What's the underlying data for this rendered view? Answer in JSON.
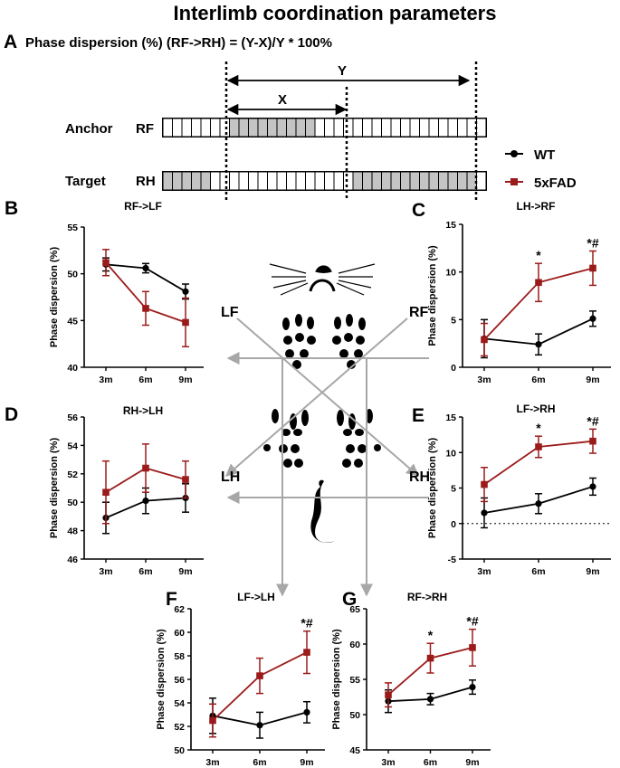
{
  "title": "Interlimb coordination parameters",
  "panel_a": {
    "letter": "A",
    "formula": "Phase dispersion (%) (RF->RH) = (Y-X)/Y * 100%",
    "x_label": "X",
    "y_label": "Y",
    "anchor_label": "Anchor",
    "anchor_limb": "RF",
    "target_label": "Target",
    "target_limb": "RH"
  },
  "legend": [
    {
      "name": "WT",
      "color": "#000000",
      "marker": "circle"
    },
    {
      "name": "5xFAD",
      "color": "#9b1b1b",
      "marker": "square"
    }
  ],
  "limb_labels": {
    "lf": "LF",
    "rf": "RF",
    "lh": "LH",
    "rh": "RH"
  },
  "chart_data": [
    {
      "letter": "B",
      "title": "RF->LF",
      "type": "line",
      "categories": [
        "3m",
        "6m",
        "9m"
      ],
      "ylabel": "Phase dispersion (%)",
      "ylim": [
        40,
        55
      ],
      "yticks": [
        40,
        45,
        50,
        55
      ],
      "zero_line": false,
      "series": [
        {
          "name": "WT",
          "values": [
            51.0,
            50.6,
            48.1
          ],
          "err": [
            0.7,
            0.5,
            0.8
          ]
        },
        {
          "name": "5xFAD",
          "values": [
            51.2,
            46.3,
            44.8
          ],
          "err": [
            1.4,
            1.8,
            2.6
          ]
        }
      ],
      "annotations": [
        "",
        "",
        ""
      ]
    },
    {
      "letter": "C",
      "title": "LH->RF",
      "type": "line",
      "categories": [
        "3m",
        "6m",
        "9m"
      ],
      "ylabel": "Phase dispersion (%)",
      "ylim": [
        0,
        15
      ],
      "yticks": [
        0,
        5,
        10,
        15
      ],
      "zero_line": false,
      "series": [
        {
          "name": "WT",
          "values": [
            3.0,
            2.4,
            5.1
          ],
          "err": [
            2.0,
            1.1,
            0.8
          ]
        },
        {
          "name": "5xFAD",
          "values": [
            2.9,
            8.9,
            10.4
          ],
          "err": [
            1.7,
            2.0,
            1.8
          ]
        }
      ],
      "annotations": [
        "",
        "*",
        "*#"
      ]
    },
    {
      "letter": "D",
      "title": "RH->LH",
      "type": "line",
      "categories": [
        "3m",
        "6m",
        "9m"
      ],
      "ylabel": "Phase dispersion (%)",
      "ylim": [
        46,
        56
      ],
      "yticks": [
        46,
        48,
        50,
        52,
        54,
        56
      ],
      "zero_line": false,
      "series": [
        {
          "name": "WT",
          "values": [
            48.9,
            50.1,
            50.3
          ],
          "err": [
            1.1,
            0.9,
            1.0
          ]
        },
        {
          "name": "5xFAD",
          "values": [
            50.7,
            52.4,
            51.6
          ],
          "err": [
            2.2,
            1.7,
            1.3
          ]
        }
      ],
      "annotations": [
        "",
        "",
        ""
      ]
    },
    {
      "letter": "E",
      "title": "LF->RH",
      "type": "line",
      "categories": [
        "3m",
        "6m",
        "9m"
      ],
      "ylabel": "Phase dispersion (%)",
      "ylim": [
        -5,
        15
      ],
      "yticks": [
        -5,
        0,
        5,
        10,
        15
      ],
      "zero_line": true,
      "series": [
        {
          "name": "WT",
          "values": [
            1.5,
            2.8,
            5.2
          ],
          "err": [
            2.1,
            1.4,
            1.2
          ]
        },
        {
          "name": "5xFAD",
          "values": [
            5.5,
            10.8,
            11.6
          ],
          "err": [
            2.4,
            1.5,
            1.7
          ]
        }
      ],
      "annotations": [
        "",
        "*",
        "*#"
      ]
    },
    {
      "letter": "F",
      "title": "LF->LH",
      "type": "line",
      "categories": [
        "3m",
        "6m",
        "9m"
      ],
      "ylabel": "Phase dispersion (%)",
      "ylim": [
        50,
        62
      ],
      "yticks": [
        50,
        52,
        54,
        56,
        58,
        60,
        62
      ],
      "zero_line": false,
      "series": [
        {
          "name": "WT",
          "values": [
            52.9,
            52.1,
            53.2
          ],
          "err": [
            1.5,
            1.1,
            0.9
          ]
        },
        {
          "name": "5xFAD",
          "values": [
            52.5,
            56.3,
            58.3
          ],
          "err": [
            1.4,
            1.5,
            1.8
          ]
        }
      ],
      "annotations": [
        "",
        "",
        "*#"
      ]
    },
    {
      "letter": "G",
      "title": "RF->RH",
      "type": "line",
      "categories": [
        "3m",
        "6m",
        "9m"
      ],
      "ylabel": "Phase dispersion (%)",
      "ylim": [
        45,
        65
      ],
      "yticks": [
        45,
        50,
        55,
        60,
        65
      ],
      "zero_line": false,
      "series": [
        {
          "name": "WT",
          "values": [
            51.9,
            52.2,
            53.9
          ],
          "err": [
            1.6,
            0.8,
            1.0
          ]
        },
        {
          "name": "5xFAD",
          "values": [
            52.8,
            58.0,
            59.5
          ],
          "err": [
            1.7,
            2.1,
            2.6
          ]
        }
      ],
      "annotations": [
        "",
        "*",
        "*#"
      ]
    }
  ]
}
